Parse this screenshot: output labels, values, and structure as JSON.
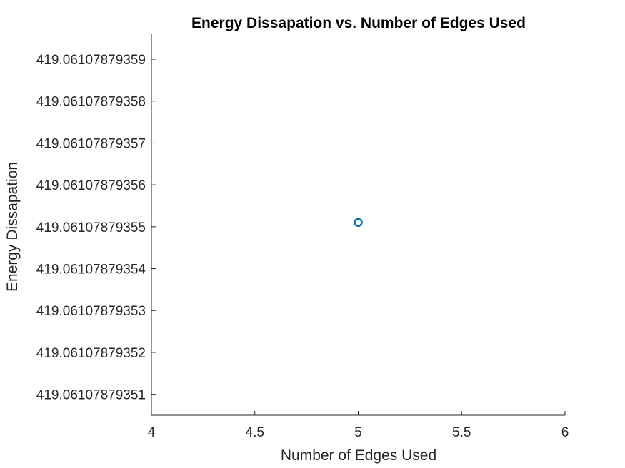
{
  "chart_data": {
    "type": "scatter",
    "title": "Energy Dissapation vs. Number of Edges Used",
    "xlabel": "Number of Edges Used",
    "ylabel": "Energy Dissapation",
    "xlim": [
      4,
      6
    ],
    "ylim": [
      419.061078793505,
      419.061078793596
    ],
    "x_ticks": [
      4,
      4.5,
      5,
      5.5,
      6
    ],
    "x_tick_labels": [
      "4",
      "4.5",
      "5",
      "5.5",
      "6"
    ],
    "y_ticks": [
      419.06107879351,
      419.06107879352,
      419.06107879353,
      419.06107879354,
      419.06107879355,
      419.06107879356,
      419.06107879357,
      419.06107879358,
      419.06107879359
    ],
    "y_tick_labels": [
      "419.06107879351",
      "419.06107879352",
      "419.06107879353",
      "419.06107879354",
      "419.06107879355",
      "419.06107879356",
      "419.06107879357",
      "419.06107879358",
      "419.06107879359"
    ],
    "grid": false,
    "series": [
      {
        "marker": "circle",
        "color": "#0072BD",
        "x": [
          5
        ],
        "y": [
          419.061078793551
        ]
      }
    ]
  }
}
